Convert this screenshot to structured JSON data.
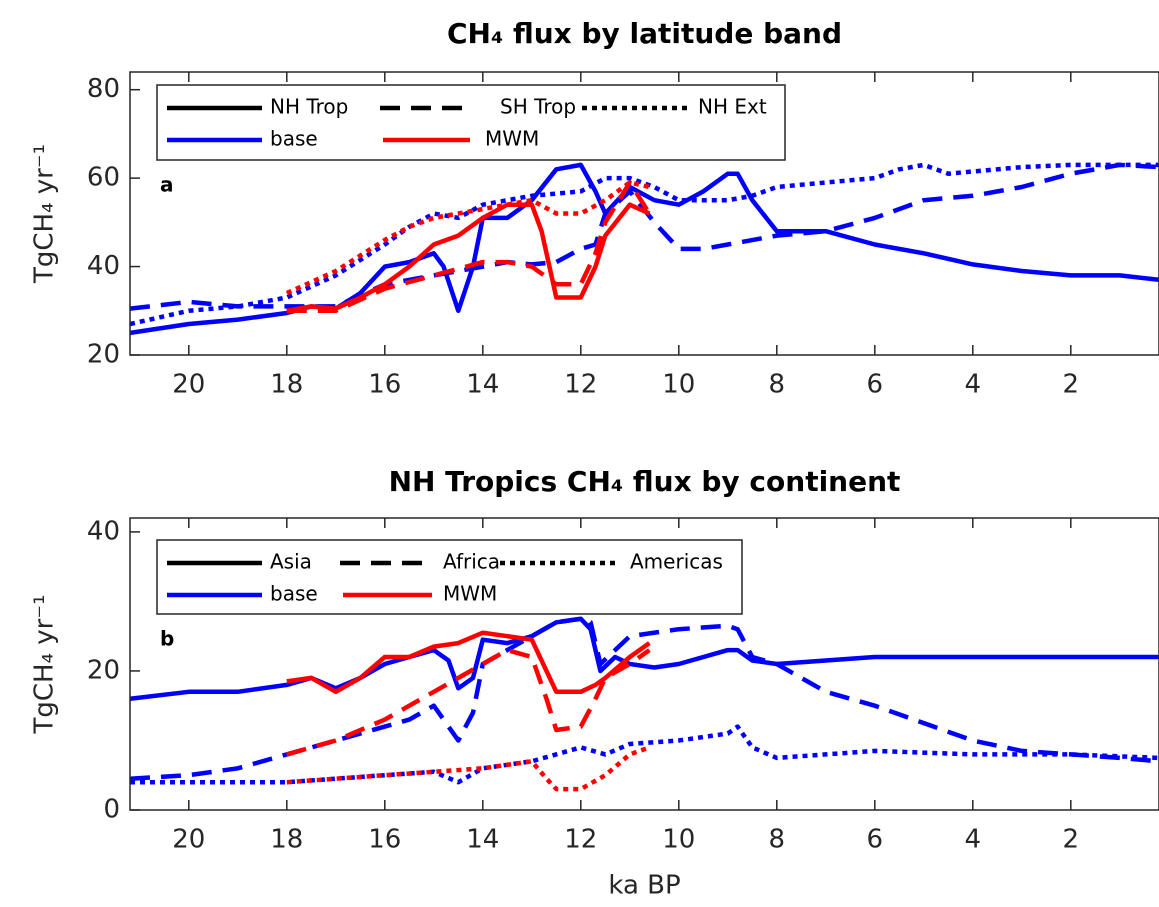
{
  "chart_data": [
    {
      "type": "line",
      "title": "CH₄ flux by latitude band",
      "ylabel": "TgCH₄ yr⁻¹",
      "panel_label": "a",
      "xlim": [
        21.2,
        0.2
      ],
      "xticks": [
        20,
        18,
        16,
        14,
        12,
        10,
        8,
        6,
        4,
        2
      ],
      "ylim": [
        20,
        84
      ],
      "yticks": [
        20,
        40,
        60,
        80
      ],
      "grid": false,
      "legend": {
        "styles": [
          {
            "name": "NH Trop",
            "dash": "solid"
          },
          {
            "name": "SH Trop",
            "dash": "dashed"
          },
          {
            "name": "NH Ext",
            "dash": "dotted"
          }
        ],
        "colors": [
          {
            "name": "base",
            "color": "#0000ff"
          },
          {
            "name": "MWM",
            "color": "#ff0000"
          }
        ]
      },
      "series": [
        {
          "color": "#0000ff",
          "dash": "solid",
          "x": [
            21.2,
            20,
            19,
            18,
            17.5,
            17,
            16.5,
            16,
            15.5,
            15,
            14.8,
            14.5,
            14.2,
            14,
            13.5,
            13,
            12.5,
            12,
            11.7,
            11.5,
            11,
            10.5,
            10,
            9.5,
            9,
            8.8,
            8.5,
            8,
            7,
            6,
            5,
            4,
            3,
            2,
            1,
            0.2
          ],
          "values": [
            25,
            27,
            28,
            29.5,
            31,
            30.5,
            34,
            40,
            41,
            43,
            40,
            30,
            40,
            51,
            51,
            55,
            62,
            63,
            57,
            52,
            58,
            55,
            54,
            57,
            61,
            61,
            55,
            48,
            48,
            45,
            43,
            40.5,
            39,
            38,
            38,
            37
          ]
        },
        {
          "color": "#0000ff",
          "dash": "dashed",
          "x": [
            21.2,
            20,
            19,
            18,
            17,
            16,
            15,
            14,
            13.5,
            13,
            12.5,
            12,
            11.7,
            11.5,
            11,
            10.5,
            10,
            9.5,
            9,
            8,
            7,
            6,
            5,
            4,
            3,
            2,
            1,
            0.2
          ],
          "values": [
            30.5,
            32,
            31,
            31,
            31,
            36,
            38,
            40,
            41,
            40.5,
            41,
            44,
            45,
            52,
            57,
            50,
            44,
            44,
            45,
            47,
            48,
            51,
            55,
            56,
            58,
            61,
            63,
            62.5
          ]
        },
        {
          "color": "#0000ff",
          "dash": "dotted",
          "x": [
            21.2,
            20,
            19,
            18,
            17,
            16,
            15.5,
            15,
            14.5,
            14,
            13.5,
            13,
            12,
            11.5,
            11,
            10.5,
            10,
            9,
            8.5,
            8,
            7,
            6,
            5.5,
            5,
            4.5,
            3,
            2,
            1,
            0.2
          ],
          "values": [
            27,
            30,
            31,
            33,
            38,
            45,
            49,
            52,
            51,
            54,
            55,
            56,
            57,
            60,
            60,
            58,
            55,
            55,
            56,
            58,
            59,
            60,
            62,
            63,
            61,
            62.5,
            63,
            63,
            63
          ]
        },
        {
          "color": "#ff0000",
          "dash": "solid",
          "x": [
            18,
            17.5,
            17,
            16.5,
            16,
            15.5,
            15,
            14.5,
            14,
            13.5,
            13,
            12.8,
            12.5,
            12,
            11.7,
            11.5,
            11,
            10.6
          ],
          "values": [
            30,
            31,
            30.5,
            33,
            36,
            40,
            45,
            47,
            51,
            54,
            54,
            48,
            33,
            33,
            40,
            47,
            54,
            52
          ]
        },
        {
          "color": "#ff0000",
          "dash": "dashed",
          "x": [
            18,
            17,
            16,
            15,
            14,
            13.5,
            13,
            12.5,
            12,
            11.7,
            11.5,
            11,
            10.6
          ],
          "values": [
            30,
            30,
            35,
            38,
            41,
            41,
            40,
            36,
            36,
            43,
            50,
            59,
            52
          ]
        },
        {
          "color": "#ff0000",
          "dash": "dotted",
          "x": [
            18,
            17,
            16,
            15.5,
            15,
            14,
            13,
            12.5,
            12,
            11.5,
            11,
            10.6
          ],
          "values": [
            34,
            39,
            46,
            49,
            51,
            53,
            55,
            52,
            52,
            55,
            59,
            58
          ]
        }
      ]
    },
    {
      "type": "line",
      "title": "NH Tropics CH₄ flux by continent",
      "ylabel": "TgCH₄ yr⁻¹",
      "xlabel": "ka BP",
      "panel_label": "b",
      "xlim": [
        21.2,
        0.2
      ],
      "xticks": [
        20,
        18,
        16,
        14,
        12,
        10,
        8,
        6,
        4,
        2
      ],
      "ylim": [
        0,
        42
      ],
      "yticks": [
        0,
        20,
        40
      ],
      "grid": false,
      "legend": {
        "styles": [
          {
            "name": "Asia",
            "dash": "solid"
          },
          {
            "name": "Africa",
            "dash": "dashed"
          },
          {
            "name": "Americas",
            "dash": "dotted"
          }
        ],
        "colors": [
          {
            "name": "base",
            "color": "#0000ff"
          },
          {
            "name": "MWM",
            "color": "#ff0000"
          }
        ]
      },
      "series": [
        {
          "color": "#0000ff",
          "dash": "solid",
          "x": [
            21.2,
            20,
            19,
            18,
            17.5,
            17,
            16.5,
            16,
            15.5,
            15,
            14.7,
            14.5,
            14.2,
            14,
            13.5,
            13,
            12.5,
            12,
            11.8,
            11.6,
            11.3,
            11,
            10.5,
            10,
            9,
            8.8,
            8.5,
            8,
            7,
            6,
            4,
            2,
            0.2
          ],
          "values": [
            16,
            17,
            17,
            18,
            19,
            17.5,
            19,
            21,
            22,
            23,
            21.5,
            17.5,
            19,
            24.5,
            24,
            25,
            27,
            27.5,
            26,
            20,
            22,
            21,
            20.5,
            21,
            23,
            23,
            21.5,
            21,
            21.5,
            22,
            22,
            22,
            22
          ]
        },
        {
          "color": "#0000ff",
          "dash": "dashed",
          "x": [
            21.2,
            20,
            19,
            18,
            17,
            16,
            15.5,
            15,
            14.8,
            14.5,
            14.2,
            14,
            13.5,
            13,
            12.5,
            12,
            11.8,
            11.6,
            11.3,
            11,
            10,
            9,
            8.8,
            8.5,
            8,
            7,
            6,
            5,
            4,
            3,
            2,
            1,
            0.2
          ],
          "values": [
            4.5,
            5,
            6,
            8,
            10,
            12,
            13,
            15,
            13,
            10,
            14,
            21,
            23,
            25,
            27,
            27.5,
            27,
            21,
            23,
            25,
            26,
            26.5,
            26,
            22,
            21,
            17,
            15,
            12.5,
            10,
            8.5,
            8,
            7.5,
            7
          ]
        },
        {
          "color": "#0000ff",
          "dash": "dotted",
          "x": [
            21.2,
            20,
            19,
            18,
            17,
            16,
            15,
            14.5,
            14,
            13,
            12,
            11.5,
            11,
            10,
            9,
            8.8,
            8.5,
            8,
            7,
            6,
            4,
            2,
            0.2
          ],
          "values": [
            4,
            4,
            4,
            4,
            4.5,
            5,
            5.5,
            4,
            6,
            7,
            9,
            8,
            9.5,
            10,
            11,
            12,
            9,
            7.5,
            8,
            8.5,
            8,
            8,
            7.5
          ]
        },
        {
          "color": "#ff0000",
          "dash": "solid",
          "x": [
            18,
            17.5,
            17,
            16.5,
            16,
            15.5,
            15,
            14.5,
            14,
            13.5,
            13,
            12.7,
            12.5,
            12,
            11.7,
            11.5,
            11,
            10.6
          ],
          "values": [
            18.5,
            19,
            17,
            19,
            22,
            22,
            23.5,
            24,
            25.5,
            25,
            24.5,
            20,
            17,
            17,
            18,
            19,
            22,
            24
          ]
        },
        {
          "color": "#ff0000",
          "dash": "dashed",
          "x": [
            18,
            17,
            16,
            15,
            14,
            13.5,
            13,
            12.7,
            12.5,
            12,
            11.7,
            11.5,
            11,
            10.6
          ],
          "values": [
            8,
            10,
            13,
            17,
            21,
            23,
            22,
            16,
            11.5,
            12,
            16,
            19,
            21,
            23
          ]
        },
        {
          "color": "#ff0000",
          "dash": "dotted",
          "x": [
            18,
            17,
            16,
            15,
            14,
            13,
            12.7,
            12.5,
            12,
            11.5,
            11,
            10.6
          ],
          "values": [
            4,
            4.5,
            5,
            5.5,
            6,
            7,
            4.5,
            3,
            3,
            5,
            8,
            9
          ]
        }
      ]
    }
  ]
}
